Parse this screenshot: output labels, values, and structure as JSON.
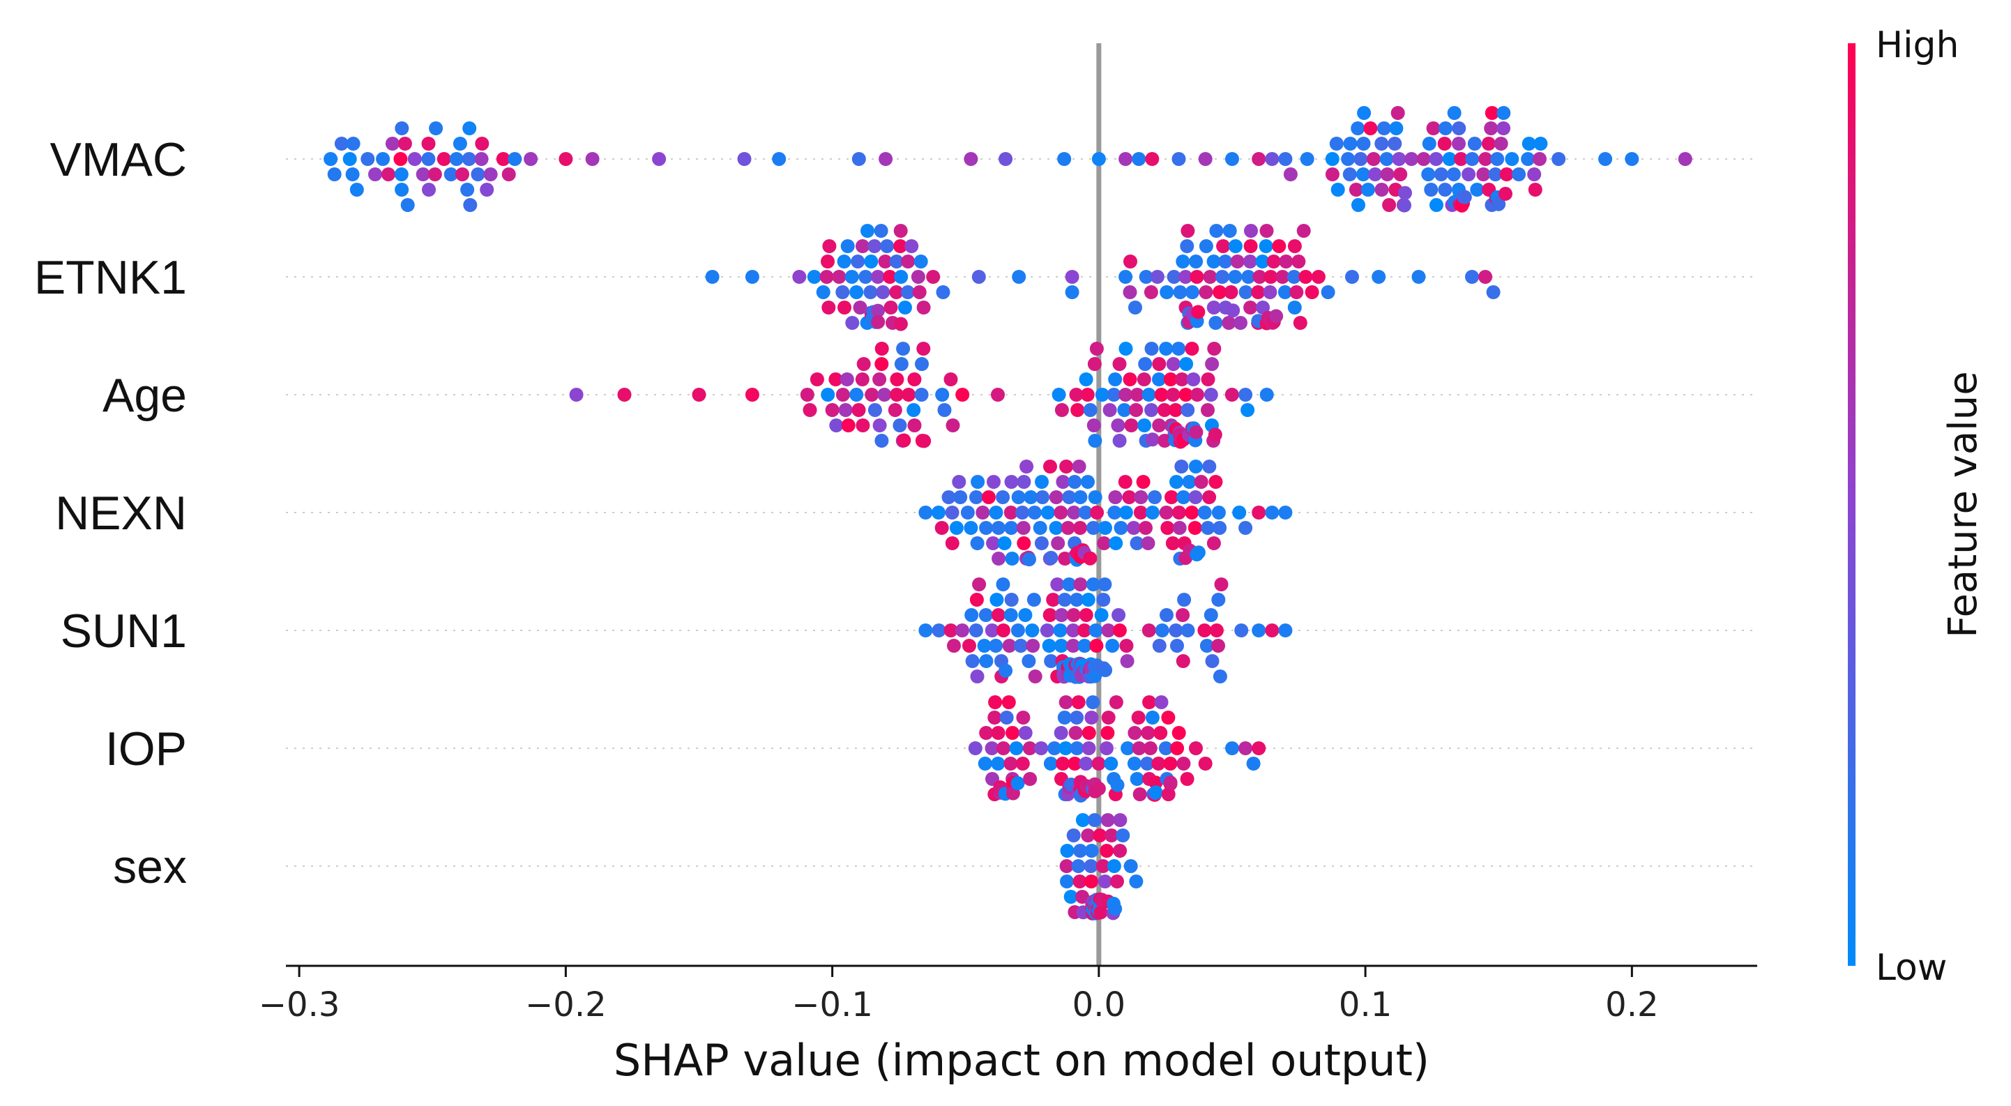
{
  "chart_data": {
    "type": "scatter",
    "subtype": "shap_beeswarm",
    "xlabel": "SHAP value (impact on model output)",
    "xlim": [
      -0.305,
      0.247
    ],
    "xticks": [
      -0.3,
      -0.2,
      -0.1,
      0.0,
      0.1,
      0.2
    ],
    "xtick_labels": [
      "−0.3",
      "−0.2",
      "−0.1",
      "0.0",
      "0.1",
      "0.2"
    ],
    "colorbar": {
      "label": "Feature value",
      "high_label": "High",
      "low_label": "Low",
      "low_color": "#008bfb",
      "mid_color": "#8c45d2",
      "high_color": "#ff0052"
    },
    "features": [
      {
        "name": "VMAC",
        "clusters": [
          {
            "center": -0.245,
            "spread": 0.035,
            "count": 40,
            "width": 0.6,
            "high_share": 0.3
          },
          {
            "center": 0.11,
            "spread": 0.03,
            "count": 55,
            "width": 1.0,
            "high_share": 0.35
          },
          {
            "center": 0.145,
            "spread": 0.018,
            "count": 40,
            "width": 1.0,
            "high_share": 0.3
          }
        ],
        "points": [
          [
            -0.28,
            0.1
          ],
          [
            -0.265,
            0.6
          ],
          [
            -0.262,
            1
          ],
          [
            -0.2,
            0.9
          ],
          [
            -0.19,
            0.6
          ],
          [
            -0.165,
            0.5
          ],
          [
            -0.133,
            0.4
          ],
          [
            -0.12,
            0.1
          ],
          [
            -0.09,
            0.2
          ],
          [
            -0.08,
            0.6
          ],
          [
            -0.048,
            0.6
          ],
          [
            -0.035,
            0.4
          ],
          [
            -0.013,
            0.1
          ],
          [
            0.0,
            0.05
          ],
          [
            0.01,
            0.6
          ],
          [
            0.015,
            0.1
          ],
          [
            0.02,
            0.9
          ],
          [
            0.03,
            0.2
          ],
          [
            0.04,
            0.6
          ],
          [
            0.05,
            0.1
          ],
          [
            0.06,
            0.8
          ],
          [
            0.065,
            0.4
          ],
          [
            0.07,
            0.2
          ],
          [
            0.19,
            0.1
          ],
          [
            0.2,
            0.1
          ],
          [
            0.22,
            0.6
          ]
        ]
      },
      {
        "name": "ETNK1",
        "clusters": [
          {
            "center": -0.085,
            "spread": 0.022,
            "count": 55,
            "width": 1.0,
            "high_share": 0.35
          },
          {
            "center": 0.04,
            "spread": 0.022,
            "count": 45,
            "width": 0.8,
            "high_share": 0.3
          },
          {
            "center": 0.06,
            "spread": 0.018,
            "count": 35,
            "width": 1.0,
            "high_share": 0.55
          }
        ],
        "points": [
          [
            -0.145,
            0.1
          ],
          [
            -0.13,
            0.1
          ],
          [
            -0.045,
            0.3
          ],
          [
            -0.03,
            0.1
          ],
          [
            -0.01,
            0.5
          ],
          [
            -0.01,
            0.1
          ],
          [
            0.01,
            0.1
          ],
          [
            0.095,
            0.2
          ],
          [
            0.105,
            0.1
          ],
          [
            0.12,
            0.1
          ],
          [
            0.14,
            0.2
          ],
          [
            0.145,
            0.8
          ],
          [
            0.148,
            0.2
          ]
        ]
      },
      {
        "name": "Age",
        "clusters": [
          {
            "center": -0.075,
            "spread": 0.028,
            "count": 45,
            "width": 0.55,
            "high_share": 0.6
          },
          {
            "center": 0.0,
            "spread": 0.015,
            "count": 25,
            "width": 0.6,
            "high_share": 0.4
          },
          {
            "center": 0.03,
            "spread": 0.014,
            "count": 55,
            "width": 1.0,
            "high_share": 0.55
          }
        ],
        "points": [
          [
            -0.196,
            0.5
          ],
          [
            -0.178,
            0.9
          ],
          [
            -0.15,
            0.9
          ],
          [
            -0.13,
            0.95
          ],
          [
            -0.1,
            0.8
          ],
          [
            -0.095,
            0.6
          ],
          [
            0.055,
            0.2
          ],
          [
            0.063,
            0.1
          ]
        ]
      },
      {
        "name": "NEXN",
        "clusters": [
          {
            "center": -0.04,
            "spread": 0.015,
            "count": 30,
            "width": 0.6,
            "high_share": 0.25
          },
          {
            "center": -0.01,
            "spread": 0.018,
            "count": 55,
            "width": 1.0,
            "high_share": 0.3
          },
          {
            "center": 0.03,
            "spread": 0.02,
            "count": 35,
            "width": 0.7,
            "high_share": 0.45
          }
        ],
        "points": [
          [
            -0.065,
            0.1
          ],
          [
            -0.055,
            0.3
          ],
          [
            0.045,
            0.1
          ],
          [
            0.055,
            0.2
          ],
          [
            0.06,
            0.9
          ],
          [
            0.065,
            0.1
          ],
          [
            0.07,
            0.1
          ]
        ]
      },
      {
        "name": "SUN1",
        "clusters": [
          {
            "center": -0.04,
            "spread": 0.015,
            "count": 30,
            "width": 0.5,
            "high_share": 0.15
          },
          {
            "center": -0.005,
            "spread": 0.012,
            "count": 70,
            "width": 1.0,
            "high_share": 0.2
          },
          {
            "center": 0.035,
            "spread": 0.015,
            "count": 20,
            "width": 0.5,
            "high_share": 0.3
          }
        ],
        "points": [
          [
            -0.065,
            0.1
          ],
          [
            -0.06,
            0.2
          ],
          [
            0.06,
            0.1
          ],
          [
            0.065,
            0.9
          ],
          [
            0.07,
            0.1
          ]
        ]
      },
      {
        "name": "IOP",
        "clusters": [
          {
            "center": -0.035,
            "spread": 0.01,
            "count": 30,
            "width": 0.6,
            "high_share": 0.6
          },
          {
            "center": -0.005,
            "spread": 0.01,
            "count": 45,
            "width": 1.0,
            "high_share": 0.55
          },
          {
            "center": 0.02,
            "spread": 0.012,
            "count": 35,
            "width": 0.8,
            "high_share": 0.6
          }
        ],
        "points": [
          [
            -0.04,
            0.6
          ],
          [
            0.04,
            0.9
          ],
          [
            0.05,
            0.1
          ],
          [
            0.055,
            0.7
          ],
          [
            0.058,
            0.1
          ],
          [
            0.06,
            0.9
          ]
        ]
      },
      {
        "name": "sex",
        "clusters": [
          {
            "center": -0.001,
            "spread": 0.002,
            "count": 40,
            "width": 1.0,
            "high_share": 0.5
          },
          {
            "center": 0.005,
            "spread": 0.004,
            "count": 15,
            "width": 0.5,
            "high_share": 0.3
          },
          {
            "center": -0.008,
            "spread": 0.004,
            "count": 12,
            "width": 0.5,
            "high_share": 0.3
          }
        ],
        "points": [
          [
            -0.012,
            0.1
          ],
          [
            0.012,
            0.1
          ],
          [
            0.014,
            0.1
          ]
        ]
      }
    ]
  }
}
